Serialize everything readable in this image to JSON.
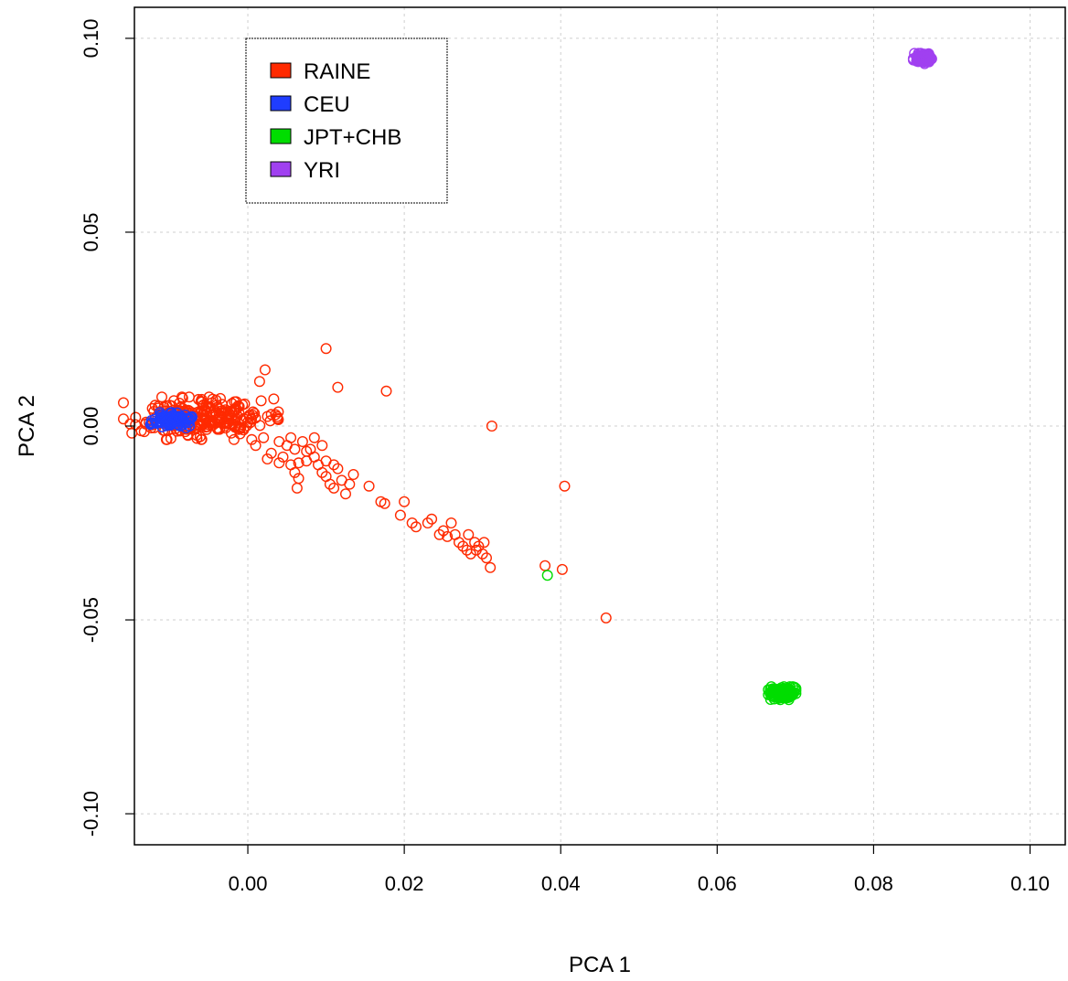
{
  "chart_data": {
    "type": "scatter",
    "title": "",
    "xlabel": "PCA 1",
    "ylabel": "PCA 2",
    "xlim": [
      -0.0145,
      0.1045
    ],
    "ylim": [
      -0.108,
      0.108
    ],
    "xticks": [
      0.0,
      0.02,
      0.04,
      0.06,
      0.08,
      0.1
    ],
    "xtick_labels": [
      "0.00",
      "0.02",
      "0.04",
      "0.06",
      "0.08",
      "0.10"
    ],
    "yticks": [
      -0.1,
      -0.05,
      0.0,
      0.05,
      0.1
    ],
    "ytick_labels": [
      "-0.10",
      "-0.05",
      "0.00",
      "0.05",
      "0.10"
    ],
    "grid": true,
    "legend_position": "top-left",
    "series": [
      {
        "name": "RAINE",
        "color": "#ff2a00",
        "cluster": {
          "center": [
            -0.006,
            0.002
          ],
          "spread": [
            0.0045,
            0.0025
          ],
          "count": 260
        },
        "points": [
          [
            0.01,
            0.02
          ],
          [
            0.0022,
            0.0145
          ],
          [
            0.0015,
            0.0115
          ],
          [
            0.0115,
            0.01
          ],
          [
            0.0177,
            0.009
          ],
          [
            0.0017,
            0.0065
          ],
          [
            0.003,
            0.003
          ],
          [
            0.0,
            0.001
          ],
          [
            -0.001,
            -0.002
          ],
          [
            0.002,
            -0.003
          ],
          [
            0.001,
            -0.005
          ],
          [
            0.004,
            -0.004
          ],
          [
            0.003,
            -0.007
          ],
          [
            0.0025,
            -0.0085
          ],
          [
            0.005,
            -0.005
          ],
          [
            0.006,
            -0.006
          ],
          [
            0.007,
            -0.004
          ],
          [
            0.0045,
            -0.008
          ],
          [
            0.0055,
            -0.01
          ],
          [
            0.006,
            -0.012
          ],
          [
            0.0065,
            -0.0135
          ],
          [
            0.0063,
            -0.016
          ],
          [
            0.0075,
            -0.009
          ],
          [
            0.008,
            -0.006
          ],
          [
            0.0085,
            -0.008
          ],
          [
            0.009,
            -0.01
          ],
          [
            0.0095,
            -0.012
          ],
          [
            0.01,
            -0.013
          ],
          [
            0.0105,
            -0.015
          ],
          [
            0.011,
            -0.016
          ],
          [
            0.01,
            -0.009
          ],
          [
            0.011,
            -0.01
          ],
          [
            0.012,
            -0.014
          ],
          [
            0.013,
            -0.015
          ],
          [
            0.0125,
            -0.0175
          ],
          [
            0.0135,
            -0.0125
          ],
          [
            0.0155,
            -0.0155
          ],
          [
            0.017,
            -0.0195
          ],
          [
            0.0175,
            -0.02
          ],
          [
            0.0195,
            -0.023
          ],
          [
            0.02,
            -0.0195
          ],
          [
            0.021,
            -0.025
          ],
          [
            0.0215,
            -0.026
          ],
          [
            0.023,
            -0.025
          ],
          [
            0.0235,
            -0.024
          ],
          [
            0.0245,
            -0.028
          ],
          [
            0.025,
            -0.027
          ],
          [
            0.0255,
            -0.0285
          ],
          [
            0.026,
            -0.025
          ],
          [
            0.0265,
            -0.028
          ],
          [
            0.027,
            -0.03
          ],
          [
            0.0275,
            -0.031
          ],
          [
            0.028,
            -0.032
          ],
          [
            0.0282,
            -0.028
          ],
          [
            0.0285,
            -0.033
          ],
          [
            0.029,
            -0.03
          ],
          [
            0.0292,
            -0.032
          ],
          [
            0.0295,
            -0.031
          ],
          [
            0.03,
            -0.033
          ],
          [
            0.0302,
            -0.03
          ],
          [
            0.0305,
            -0.034
          ],
          [
            0.031,
            -0.0365
          ],
          [
            0.0312,
            0.0
          ],
          [
            0.038,
            -0.036
          ],
          [
            0.0402,
            -0.037
          ],
          [
            0.0405,
            -0.0155
          ],
          [
            0.0458,
            -0.0495
          ],
          [
            0.0055,
            -0.003
          ],
          [
            0.0085,
            -0.003
          ],
          [
            0.0095,
            -0.005
          ],
          [
            0.0075,
            -0.0065
          ],
          [
            0.0115,
            -0.011
          ],
          [
            -0.0005,
            -0.0005
          ],
          [
            0.0005,
            -0.0035
          ],
          [
            0.004,
            -0.0095
          ],
          [
            0.0065,
            -0.0095
          ]
        ]
      },
      {
        "name": "CEU",
        "color": "#1f3dff",
        "cluster": {
          "center": [
            -0.0098,
            0.0015
          ],
          "spread": [
            0.0012,
            0.0009
          ],
          "count": 110
        },
        "points": []
      },
      {
        "name": "JPT+CHB",
        "color": "#00dd00",
        "cluster": {
          "center": [
            0.0683,
            -0.069
          ],
          "spread": [
            0.0008,
            0.0008
          ],
          "count": 150
        },
        "points": [
          [
            0.0383,
            -0.0385
          ]
        ]
      },
      {
        "name": "YRI",
        "color": "#a040f0",
        "cluster": {
          "center": [
            0.0864,
            0.0948
          ],
          "spread": [
            0.0006,
            0.0006
          ],
          "count": 110
        },
        "points": []
      }
    ]
  }
}
